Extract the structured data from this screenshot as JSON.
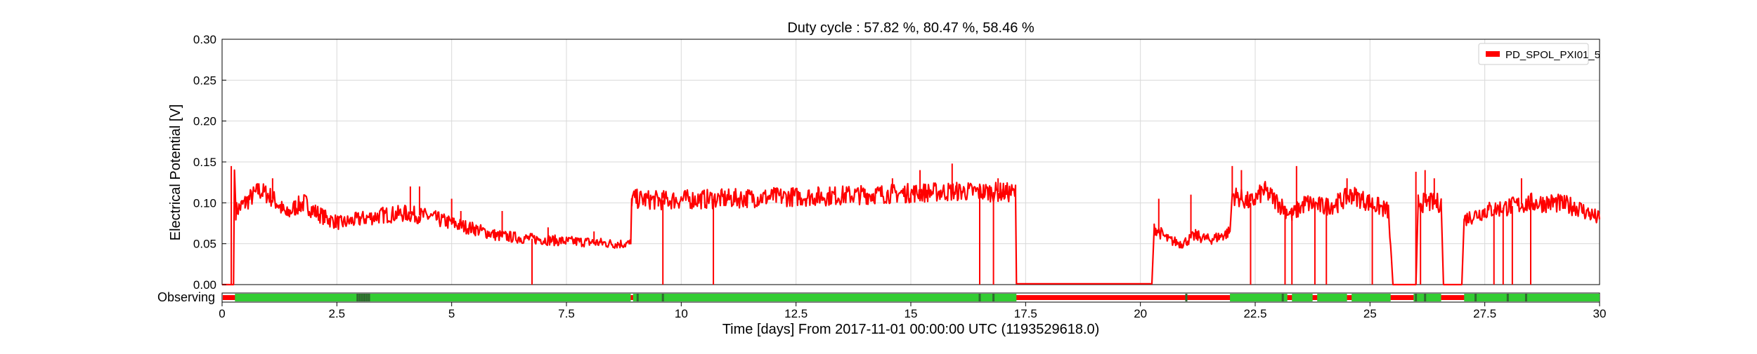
{
  "chart_data": {
    "type": "line",
    "title": "Duty cycle : 57.82 %, 80.47 %, 58.46 %",
    "xlabel": "Time [days] From 2017-11-01 00:00:00 UTC (1193529618.0)",
    "ylabel": "Electrical Potential [V]",
    "xlim": [
      0,
      30
    ],
    "ylim": [
      0,
      0.3
    ],
    "xticks": [
      0,
      2.5,
      5,
      7.5,
      10,
      12.5,
      15,
      17.5,
      20,
      22.5,
      25,
      27.5,
      30
    ],
    "xtick_labels": [
      "0",
      "2.5",
      "5",
      "7.5",
      "10",
      "12.5",
      "15",
      "17.5",
      "20",
      "22.5",
      "25",
      "27.5",
      "30"
    ],
    "yticks": [
      0,
      0.05,
      0.1,
      0.15,
      0.2,
      0.25,
      0.3
    ],
    "ytick_labels": [
      "0.00",
      "0.05",
      "0.10",
      "0.15",
      "0.20",
      "0.25",
      "0.30"
    ],
    "grid": true,
    "legend_position": "top-right",
    "series": [
      {
        "name": "PD_SPOL_PXI01_5",
        "color": "#ff0000",
        "points": [
          [
            0.0,
            0.0
          ],
          [
            0.25,
            0.0
          ],
          [
            0.27,
            0.14
          ],
          [
            0.3,
            0.09
          ],
          [
            0.5,
            0.1
          ],
          [
            0.8,
            0.115
          ],
          [
            1.0,
            0.11
          ],
          [
            1.2,
            0.1
          ],
          [
            1.4,
            0.085
          ],
          [
            1.6,
            0.095
          ],
          [
            1.8,
            0.1
          ],
          [
            2.0,
            0.09
          ],
          [
            2.3,
            0.08
          ],
          [
            2.6,
            0.075
          ],
          [
            3.0,
            0.08
          ],
          [
            3.5,
            0.085
          ],
          [
            4.0,
            0.087
          ],
          [
            4.5,
            0.083
          ],
          [
            5.0,
            0.075
          ],
          [
            5.5,
            0.068
          ],
          [
            6.0,
            0.06
          ],
          [
            6.5,
            0.057
          ],
          [
            7.0,
            0.055
          ],
          [
            7.5,
            0.053
          ],
          [
            8.0,
            0.052
          ],
          [
            8.5,
            0.05
          ],
          [
            8.9,
            0.05
          ],
          [
            8.92,
            0.105
          ],
          [
            9.5,
            0.103
          ],
          [
            10.0,
            0.104
          ],
          [
            11.0,
            0.105
          ],
          [
            12.0,
            0.107
          ],
          [
            13.0,
            0.108
          ],
          [
            14.0,
            0.11
          ],
          [
            15.0,
            0.112
          ],
          [
            16.0,
            0.114
          ],
          [
            17.0,
            0.113
          ],
          [
            17.28,
            0.112
          ],
          [
            17.3,
            0.001
          ],
          [
            20.25,
            0.001
          ],
          [
            20.3,
            0.07
          ],
          [
            20.6,
            0.055
          ],
          [
            20.9,
            0.05
          ],
          [
            21.2,
            0.06
          ],
          [
            21.5,
            0.055
          ],
          [
            21.8,
            0.06
          ],
          [
            21.95,
            0.065
          ],
          [
            22.0,
            0.11
          ],
          [
            22.4,
            0.1
          ],
          [
            22.7,
            0.115
          ],
          [
            23.0,
            0.1
          ],
          [
            23.3,
            0.085
          ],
          [
            23.6,
            0.1
          ],
          [
            24.0,
            0.095
          ],
          [
            24.3,
            0.1
          ],
          [
            24.6,
            0.11
          ],
          [
            25.0,
            0.1
          ],
          [
            25.4,
            0.09
          ],
          [
            25.5,
            0.0
          ],
          [
            26.0,
            0.0
          ],
          [
            26.05,
            0.1
          ],
          [
            26.3,
            0.1
          ],
          [
            26.55,
            0.1
          ],
          [
            26.6,
            0.0
          ],
          [
            27.0,
            0.0
          ],
          [
            27.05,
            0.08
          ],
          [
            27.5,
            0.09
          ],
          [
            28.0,
            0.095
          ],
          [
            28.5,
            0.1
          ],
          [
            29.0,
            0.1
          ],
          [
            29.5,
            0.095
          ],
          [
            30.0,
            0.08
          ]
        ],
        "dropouts": [
          6.75,
          9.6,
          10.7,
          16.5,
          16.8,
          22.4,
          23.15,
          23.3,
          23.8,
          24.05,
          25.05,
          26.1,
          26.7,
          27.0,
          27.7,
          27.9,
          28.1,
          28.5
        ],
        "spikes": [
          {
            "x": 0.2,
            "y": 0.145
          },
          {
            "x": 1.1,
            "y": 0.13
          },
          {
            "x": 4.1,
            "y": 0.12
          },
          {
            "x": 4.3,
            "y": 0.12
          },
          {
            "x": 5.0,
            "y": 0.105
          },
          {
            "x": 5.2,
            "y": 0.09
          },
          {
            "x": 6.1,
            "y": 0.09
          },
          {
            "x": 7.1,
            "y": 0.07
          },
          {
            "x": 8.1,
            "y": 0.065
          },
          {
            "x": 14.6,
            "y": 0.13
          },
          {
            "x": 15.2,
            "y": 0.14
          },
          {
            "x": 15.9,
            "y": 0.148
          },
          {
            "x": 16.9,
            "y": 0.13
          },
          {
            "x": 20.4,
            "y": 0.105
          },
          {
            "x": 21.1,
            "y": 0.11
          },
          {
            "x": 22.0,
            "y": 0.145
          },
          {
            "x": 22.2,
            "y": 0.14
          },
          {
            "x": 23.4,
            "y": 0.145
          },
          {
            "x": 24.5,
            "y": 0.13
          },
          {
            "x": 26.0,
            "y": 0.138
          },
          {
            "x": 26.2,
            "y": 0.14
          },
          {
            "x": 26.4,
            "y": 0.13
          },
          {
            "x": 28.3,
            "y": 0.13
          }
        ]
      }
    ],
    "segment_bar": {
      "label": "Observing",
      "off_color": "#ff0000",
      "on_color": "#33cc33",
      "marker_color": "#2e6b2e",
      "on_segments": [
        [
          0.28,
          8.9
        ],
        [
          8.95,
          17.3
        ],
        [
          21.95,
          23.2
        ],
        [
          23.3,
          23.75
        ],
        [
          23.85,
          24.5
        ],
        [
          24.6,
          25.45
        ],
        [
          25.95,
          26.55
        ],
        [
          27.05,
          30.0
        ]
      ],
      "dark_markers": [
        2.95,
        3.0,
        3.05,
        3.1,
        3.15,
        3.2,
        9.05,
        9.6,
        16.5,
        16.8,
        21.0,
        23.1,
        26.0,
        26.2,
        27.3,
        28.0,
        28.4
      ]
    }
  }
}
